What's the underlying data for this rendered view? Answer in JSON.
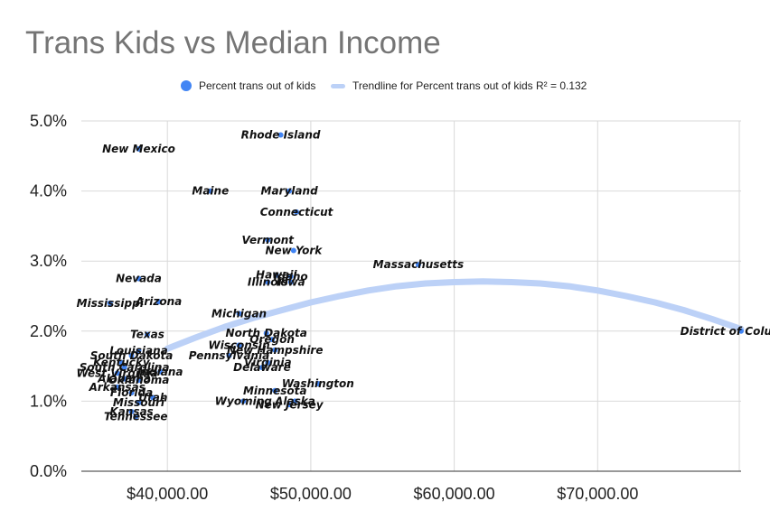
{
  "chart_data": {
    "type": "scatter",
    "title": "Trans Kids vs Median Income",
    "xlabel": "",
    "ylabel": "",
    "xlim": [
      34000,
      80000
    ],
    "ylim": [
      0,
      5
    ],
    "x_ticks": [
      40000,
      50000,
      60000,
      70000
    ],
    "x_tick_labels": [
      "$40,000.00",
      "$50,000.00",
      "$60,000.00",
      "$70,000.00"
    ],
    "y_ticks": [
      0,
      1,
      2,
      3,
      4,
      5
    ],
    "y_tick_labels": [
      "0.0%",
      "1.0%",
      "2.0%",
      "3.0%",
      "4.0%",
      "5.0%"
    ],
    "grid": true,
    "legend_position": "top",
    "colors": {
      "points": "#4285f4",
      "trendline": "#bcd1f7",
      "title": "#757575",
      "grid": "#d9d9d9"
    },
    "series": [
      {
        "name": "Percent trans out of kids",
        "points": [
          {
            "label": "Rhode Island",
            "x": 47900,
            "y": 4.8
          },
          {
            "label": "New Mexico",
            "x": 38000,
            "y": 4.6
          },
          {
            "label": "Maine",
            "x": 43000,
            "y": 4.0
          },
          {
            "label": "Maryland",
            "x": 48500,
            "y": 4.0
          },
          {
            "label": "Connecticut",
            "x": 49000,
            "y": 3.7
          },
          {
            "label": "Vermont",
            "x": 47000,
            "y": 3.3
          },
          {
            "label": "New York",
            "x": 48800,
            "y": 3.15
          },
          {
            "label": "Hawaii",
            "x": 47600,
            "y": 2.8
          },
          {
            "label": "Illinois",
            "x": 47000,
            "y": 2.7
          },
          {
            "label": "Idaho",
            "x": 48600,
            "y": 2.78
          },
          {
            "label": "Iowa",
            "x": 48600,
            "y": 2.7
          },
          {
            "label": "Massachusetts",
            "x": 57500,
            "y": 2.95
          },
          {
            "label": "Nevada",
            "x": 38000,
            "y": 2.75
          },
          {
            "label": "Mississippi",
            "x": 36000,
            "y": 2.4
          },
          {
            "label": "Arizona",
            "x": 39400,
            "y": 2.42
          },
          {
            "label": "Michigan",
            "x": 45000,
            "y": 2.25
          },
          {
            "label": "District of Columbia",
            "x": 80000,
            "y": 2.0
          },
          {
            "label": "Texas",
            "x": 38600,
            "y": 1.95
          },
          {
            "label": "North Dakota",
            "x": 46900,
            "y": 1.97
          },
          {
            "label": "Oregon",
            "x": 47300,
            "y": 1.88
          },
          {
            "label": "Wisconsin",
            "x": 45000,
            "y": 1.8
          },
          {
            "label": "New Hampshire",
            "x": 47500,
            "y": 1.73
          },
          {
            "label": "Pennsylvania",
            "x": 44300,
            "y": 1.65
          },
          {
            "label": "Louisiana",
            "x": 38000,
            "y": 1.72
          },
          {
            "label": "South Dakota",
            "x": 37500,
            "y": 1.65
          },
          {
            "label": "Virginia",
            "x": 47000,
            "y": 1.55
          },
          {
            "label": "Delaware",
            "x": 46600,
            "y": 1.48
          },
          {
            "label": "Kentucky",
            "x": 36800,
            "y": 1.55
          },
          {
            "label": "South Carolina",
            "x": 37000,
            "y": 1.48
          },
          {
            "label": "Indiana",
            "x": 39500,
            "y": 1.42
          },
          {
            "label": "West Virginia",
            "x": 36500,
            "y": 1.4
          },
          {
            "label": "Alabama",
            "x": 37000,
            "y": 1.32
          },
          {
            "label": "Oklahoma",
            "x": 38000,
            "y": 1.3
          },
          {
            "label": "Arkansas",
            "x": 36500,
            "y": 1.2
          },
          {
            "label": "Washington",
            "x": 50500,
            "y": 1.25
          },
          {
            "label": "Minnesota",
            "x": 47500,
            "y": 1.15
          },
          {
            "label": "Florida",
            "x": 37500,
            "y": 1.12
          },
          {
            "label": "Utah",
            "x": 39000,
            "y": 1.05
          },
          {
            "label": "Missouri",
            "x": 38000,
            "y": 0.98
          },
          {
            "label": "Wyoming",
            "x": 45300,
            "y": 1.0
          },
          {
            "label": "Alaska",
            "x": 48900,
            "y": 1.0
          },
          {
            "label": "New Jersey",
            "x": 48500,
            "y": 0.95
          },
          {
            "label": "Kansas",
            "x": 37500,
            "y": 0.85
          },
          {
            "label": "Tennessee",
            "x": 37800,
            "y": 0.78
          }
        ]
      },
      {
        "name": "Trendline for Percent trans out of kids R² = 0.132",
        "type": "line",
        "x": [
          40000,
          42000,
          44000,
          46000,
          48000,
          50000,
          52000,
          54000,
          56000,
          58000,
          60000,
          62000,
          64000,
          66000,
          68000,
          70000,
          72000,
          74000,
          76000,
          78000,
          80000
        ],
        "values": [
          1.75,
          1.91,
          2.06,
          2.19,
          2.3,
          2.41,
          2.5,
          2.58,
          2.64,
          2.68,
          2.7,
          2.71,
          2.7,
          2.68,
          2.64,
          2.58,
          2.5,
          2.41,
          2.3,
          2.17,
          2.03
        ]
      }
    ]
  }
}
